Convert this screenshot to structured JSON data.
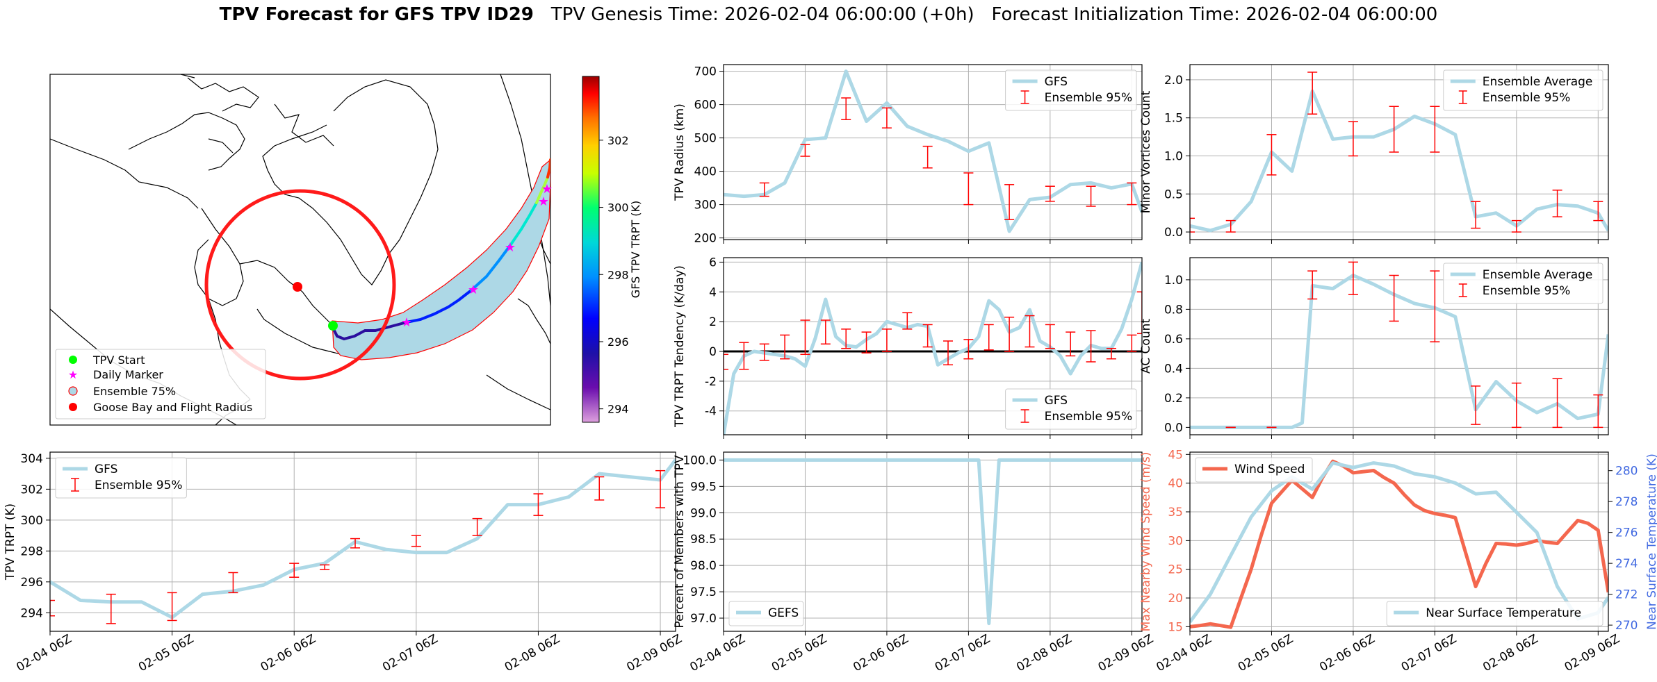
{
  "title": {
    "bold": "TPV Forecast for GFS TPV ID29",
    "genesis": "TPV Genesis Time: 2026-02-04 06:00:00 (+0h)",
    "init": "Forecast Initialization Time: 2026-02-04 06:00:00"
  },
  "colors": {
    "gfs_line": "#add8e6",
    "errorbar": "#ff0000",
    "wind": "#f4674e",
    "temp_axis": "#4169e1",
    "grid": "#b0b0b0",
    "track_plume": "#add8e6",
    "flight_radius": "#ff0000"
  },
  "map": {
    "colorbar_label": "GFS TPV TRPT (K)",
    "colorbar_ticks": [
      294,
      296,
      298,
      300,
      302
    ],
    "colorbar_range": [
      293.6,
      303.9
    ],
    "legend": [
      "TPV Start",
      "Daily Marker",
      "Ensemble 75%",
      "Goose Bay and Flight Radius"
    ]
  },
  "chart_data": [
    {
      "id": "radius",
      "type": "line",
      "ylabel": "TPV Radius (km)",
      "xlim": [
        0,
        123
      ],
      "ylim": [
        195,
        720
      ],
      "yticks": [
        200,
        300,
        400,
        500,
        600,
        700
      ],
      "xticks": [
        0,
        24,
        48,
        72,
        96,
        120
      ],
      "xticklabels": [
        "02-04 06Z",
        "02-05 06Z",
        "02-06 06Z",
        "02-07 06Z",
        "02-08 06Z",
        "02-09 06Z"
      ],
      "show_xticklabels": false,
      "legend_loc": "upper right",
      "series": [
        {
          "name": "GFS",
          "kind": "line",
          "x": [
            0,
            6,
            12,
            18,
            24,
            30,
            36,
            42,
            48,
            54,
            60,
            66,
            72,
            78,
            84,
            90,
            96,
            102,
            108,
            114,
            120,
            123
          ],
          "y": [
            330,
            325,
            330,
            365,
            495,
            500,
            700,
            550,
            605,
            535,
            510,
            490,
            460,
            485,
            220,
            315,
            322,
            360,
            365,
            350,
            362,
            278
          ]
        },
        {
          "name": "Ensemble 95%",
          "kind": "errorbar",
          "x": [
            12,
            24,
            36,
            48,
            60,
            72,
            84,
            96,
            108,
            120
          ],
          "lo": [
            325,
            445,
            555,
            530,
            410,
            300,
            255,
            310,
            295,
            300
          ],
          "hi": [
            365,
            480,
            620,
            590,
            475,
            395,
            360,
            355,
            355,
            365
          ]
        }
      ]
    },
    {
      "id": "minor",
      "type": "line",
      "ylabel": "Minor Vortices Count",
      "xlim": [
        0,
        123
      ],
      "ylim": [
        -0.1,
        2.2
      ],
      "yticks": [
        0.0,
        0.5,
        1.0,
        1.5,
        2.0
      ],
      "yticklabels": [
        "0.0",
        "0.5",
        "1.0",
        "1.5",
        "2.0"
      ],
      "xticks": [
        0,
        24,
        48,
        72,
        96,
        120
      ],
      "xticklabels": [
        "02-04 06Z",
        "02-05 06Z",
        "02-06 06Z",
        "02-07 06Z",
        "02-08 06Z",
        "02-09 06Z"
      ],
      "show_xticklabels": false,
      "legend_loc": "upper right",
      "series": [
        {
          "name": "Ensemble Average",
          "kind": "line",
          "x": [
            0,
            6,
            12,
            18,
            24,
            30,
            36,
            42,
            48,
            54,
            60,
            66,
            72,
            78,
            84,
            90,
            96,
            102,
            108,
            114,
            120,
            123
          ],
          "y": [
            0.08,
            0.02,
            0.1,
            0.4,
            1.05,
            0.8,
            1.85,
            1.22,
            1.25,
            1.25,
            1.35,
            1.52,
            1.42,
            1.28,
            0.2,
            0.25,
            0.08,
            0.3,
            0.36,
            0.34,
            0.25,
            0.02
          ]
        },
        {
          "name": "Ensemble 95%",
          "kind": "errorbar",
          "x": [
            0,
            12,
            24,
            36,
            48,
            60,
            72,
            84,
            96,
            108,
            120
          ],
          "lo": [
            0.0,
            0.0,
            0.75,
            1.55,
            1.0,
            1.05,
            1.05,
            0.05,
            0.0,
            0.2,
            0.15
          ],
          "hi": [
            0.18,
            0.15,
            1.28,
            2.1,
            1.45,
            1.65,
            1.65,
            0.4,
            0.15,
            0.55,
            0.4
          ]
        }
      ]
    },
    {
      "id": "tendency",
      "type": "line",
      "ylabel": "TPV TRPT Tendency (K/day)",
      "xlim": [
        0,
        123
      ],
      "ylim": [
        -5.6,
        6.3
      ],
      "yticks": [
        -4,
        -2,
        0,
        2,
        4,
        6
      ],
      "xticks": [
        0,
        24,
        48,
        72,
        96,
        120
      ],
      "xticklabels": [
        "02-04 06Z",
        "02-05 06Z",
        "02-06 06Z",
        "02-07 06Z",
        "02-08 06Z",
        "02-09 06Z"
      ],
      "show_xticklabels": false,
      "zero_line": true,
      "legend_loc": "lower right",
      "series": [
        {
          "name": "GFS",
          "kind": "line",
          "x": [
            0,
            3,
            6,
            9,
            12,
            15,
            18,
            21,
            24,
            27,
            30,
            33,
            36,
            39,
            42,
            45,
            48,
            51,
            54,
            57,
            60,
            63,
            66,
            69,
            72,
            75,
            78,
            81,
            84,
            87,
            90,
            93,
            96,
            99,
            102,
            105,
            108,
            111,
            114,
            117,
            120,
            123
          ],
          "y": [
            -5.6,
            -1.5,
            -0.3,
            0.0,
            -0.1,
            -0.2,
            -0.3,
            -0.5,
            -1.0,
            0.9,
            3.5,
            1.0,
            0.4,
            0.3,
            0.8,
            1.2,
            2.0,
            1.8,
            1.6,
            1.8,
            1.7,
            -0.9,
            -0.5,
            -0.1,
            0.2,
            1.0,
            3.4,
            2.8,
            1.3,
            1.6,
            2.8,
            0.7,
            0.3,
            -0.3,
            -1.5,
            -0.3,
            0.4,
            0.2,
            0.2,
            1.5,
            3.5,
            6.0
          ]
        },
        {
          "name": "Ensemble 95%",
          "kind": "errorbar",
          "x": [
            0,
            6,
            12,
            18,
            24,
            30,
            36,
            42,
            48,
            54,
            60,
            66,
            72,
            78,
            84,
            90,
            96,
            102,
            108,
            114,
            120,
            123
          ],
          "lo": [
            -1.2,
            -1.2,
            -0.6,
            -0.5,
            -0.2,
            0.5,
            0.2,
            -0.1,
            0.0,
            1.5,
            0.3,
            -0.9,
            -0.5,
            0.1,
            0.0,
            0.3,
            0.2,
            -0.3,
            -0.7,
            -0.5,
            0.0,
            1.2
          ],
          "hi": [
            -0.2,
            0.6,
            0.5,
            1.1,
            2.1,
            2.1,
            1.5,
            1.3,
            1.5,
            2.6,
            1.8,
            0.7,
            0.8,
            1.8,
            2.3,
            2.4,
            1.8,
            1.3,
            1.4,
            0.2,
            1.1,
            4.0
          ]
        }
      ]
    },
    {
      "id": "ac",
      "type": "line",
      "ylabel": "AC Count",
      "xlim": [
        0,
        123
      ],
      "ylim": [
        -0.05,
        1.15
      ],
      "yticks": [
        0.0,
        0.2,
        0.4,
        0.6,
        0.8,
        1.0
      ],
      "yticklabels": [
        "0.0",
        "0.2",
        "0.4",
        "0.6",
        "0.8",
        "1.0"
      ],
      "xticks": [
        0,
        24,
        48,
        72,
        96,
        120
      ],
      "xticklabels": [
        "02-04 06Z",
        "02-05 06Z",
        "02-06 06Z",
        "02-07 06Z",
        "02-08 06Z",
        "02-09 06Z"
      ],
      "show_xticklabels": false,
      "legend_loc": "upper right",
      "series": [
        {
          "name": "Ensemble Average",
          "kind": "line",
          "x": [
            0,
            6,
            12,
            18,
            24,
            30,
            33,
            36,
            42,
            48,
            54,
            60,
            66,
            72,
            78,
            84,
            90,
            96,
            102,
            108,
            114,
            120,
            123
          ],
          "y": [
            0,
            0,
            0,
            0,
            0,
            0,
            0.03,
            0.96,
            0.94,
            1.03,
            0.97,
            0.9,
            0.84,
            0.81,
            0.75,
            0.12,
            0.31,
            0.18,
            0.1,
            0.16,
            0.06,
            0.09,
            0.63
          ]
        },
        {
          "name": "Ensemble 95%",
          "kind": "errorbar",
          "x": [
            12,
            24,
            36,
            48,
            60,
            72,
            84,
            96,
            108,
            120
          ],
          "lo": [
            0,
            0,
            0.87,
            0.9,
            0.72,
            0.58,
            0.02,
            0.0,
            0.0,
            0.0
          ],
          "hi": [
            0,
            0,
            1.06,
            1.12,
            1.03,
            1.06,
            0.28,
            0.3,
            0.33,
            0.22
          ]
        }
      ]
    },
    {
      "id": "trpt",
      "type": "line",
      "ylabel": "TPV TRPT (K)",
      "xlim": [
        0,
        123
      ],
      "ylim": [
        292.8,
        304.4
      ],
      "yticks": [
        294,
        296,
        298,
        300,
        302,
        304
      ],
      "xticks": [
        0,
        24,
        48,
        72,
        96,
        120
      ],
      "xticklabels": [
        "02-04 06Z",
        "02-05 06Z",
        "02-06 06Z",
        "02-07 06Z",
        "02-08 06Z",
        "02-09 06Z"
      ],
      "show_xticklabels": true,
      "legend_loc": "upper left",
      "series": [
        {
          "name": "GFS",
          "kind": "line",
          "x": [
            0,
            6,
            12,
            18,
            24,
            30,
            36,
            42,
            48,
            54,
            60,
            66,
            72,
            78,
            84,
            90,
            96,
            102,
            108,
            114,
            120,
            123
          ],
          "y": [
            296.0,
            294.8,
            294.7,
            294.7,
            293.7,
            295.2,
            295.4,
            295.8,
            296.8,
            297.2,
            298.6,
            298.1,
            297.9,
            297.9,
            298.8,
            301.0,
            301.0,
            301.5,
            303.0,
            302.8,
            302.6,
            303.9
          ]
        },
        {
          "name": "Ensemble 95%",
          "kind": "errorbar",
          "x": [
            0,
            12,
            24,
            36,
            48,
            54,
            60,
            72,
            84,
            96,
            108,
            120
          ],
          "lo": [
            293.8,
            293.3,
            293.5,
            295.3,
            296.3,
            296.8,
            298.2,
            298.3,
            299.0,
            300.3,
            301.3,
            300.8
          ],
          "hi": [
            294.8,
            295.2,
            295.3,
            296.6,
            297.2,
            297.1,
            298.8,
            299.0,
            300.1,
            301.7,
            302.8,
            303.2
          ]
        }
      ]
    },
    {
      "id": "percent",
      "type": "line",
      "ylabel": "Percent of Members with TPV",
      "xlim": [
        0,
        123
      ],
      "ylim": [
        96.75,
        100.15
      ],
      "yticks": [
        97.0,
        97.5,
        98.0,
        98.5,
        99.0,
        99.5,
        100.0
      ],
      "yticklabels": [
        "97.0",
        "97.5",
        "98.0",
        "98.5",
        "99.0",
        "99.5",
        "100.0"
      ],
      "xticks": [
        0,
        24,
        48,
        72,
        96,
        120
      ],
      "xticklabels": [
        "02-04 06Z",
        "02-05 06Z",
        "02-06 06Z",
        "02-07 06Z",
        "02-08 06Z",
        "02-09 06Z"
      ],
      "show_xticklabels": true,
      "legend_loc": "lower left",
      "series": [
        {
          "name": "GEFS",
          "kind": "line",
          "x": [
            0,
            72,
            75,
            78,
            81,
            123
          ],
          "y": [
            100,
            100,
            100,
            96.9,
            100,
            100
          ]
        }
      ]
    },
    {
      "id": "wind",
      "type": "line",
      "ylabel": "Max Nearby Wind Speed (m/s)",
      "ylabel2": "Near Surface Temperature (K)",
      "xlim": [
        0,
        123
      ],
      "ylim": [
        14.2,
        45.4
      ],
      "yticks": [
        15,
        20,
        25,
        30,
        35,
        40,
        45
      ],
      "ylim2": [
        269.6,
        281.2
      ],
      "yticks2": [
        270,
        272,
        274,
        276,
        278,
        280
      ],
      "xticks": [
        0,
        24,
        48,
        72,
        96,
        120
      ],
      "xticklabels": [
        "02-04 06Z",
        "02-05 06Z",
        "02-06 06Z",
        "02-07 06Z",
        "02-08 06Z",
        "02-09 06Z"
      ],
      "show_xticklabels": true,
      "legend_loc": "upper left",
      "legend2_loc": "lower right",
      "series": [
        {
          "name": "Wind Speed",
          "kind": "line",
          "axis": "left",
          "x": [
            0,
            3,
            6,
            9,
            12,
            15,
            18,
            21,
            24,
            27,
            30,
            33,
            36,
            39,
            42,
            45,
            48,
            51,
            54,
            57,
            60,
            63,
            66,
            69,
            72,
            75,
            78,
            81,
            84,
            87,
            90,
            93,
            96,
            99,
            102,
            105,
            108,
            111,
            114,
            117,
            120,
            123
          ],
          "y": [
            15,
            15.2,
            15.5,
            15.2,
            14.9,
            20,
            25,
            31,
            36.5,
            38.5,
            40.5,
            39,
            37.5,
            41,
            43.8,
            43,
            41.8,
            42,
            42.2,
            41,
            40,
            38,
            36.2,
            35.2,
            34.7,
            34.4,
            34,
            28,
            22,
            26,
            29.5,
            29.4,
            29.2,
            29.5,
            30,
            29.7,
            29.5,
            31.5,
            33.5,
            33,
            31.8,
            21
          ]
        },
        {
          "name": "Near Surface Temperature",
          "kind": "line",
          "axis": "right",
          "x": [
            0,
            6,
            12,
            18,
            24,
            30,
            36,
            42,
            48,
            54,
            60,
            66,
            72,
            78,
            84,
            90,
            96,
            102,
            108,
            114,
            120,
            123
          ],
          "y": [
            270.2,
            272.0,
            274.5,
            277.0,
            278.7,
            279.6,
            278.8,
            280.5,
            280.2,
            280.5,
            280.3,
            279.8,
            279.6,
            279.2,
            278.5,
            278.6,
            277.3,
            276.0,
            272.5,
            270.4,
            270.8,
            271.8
          ]
        }
      ]
    }
  ]
}
